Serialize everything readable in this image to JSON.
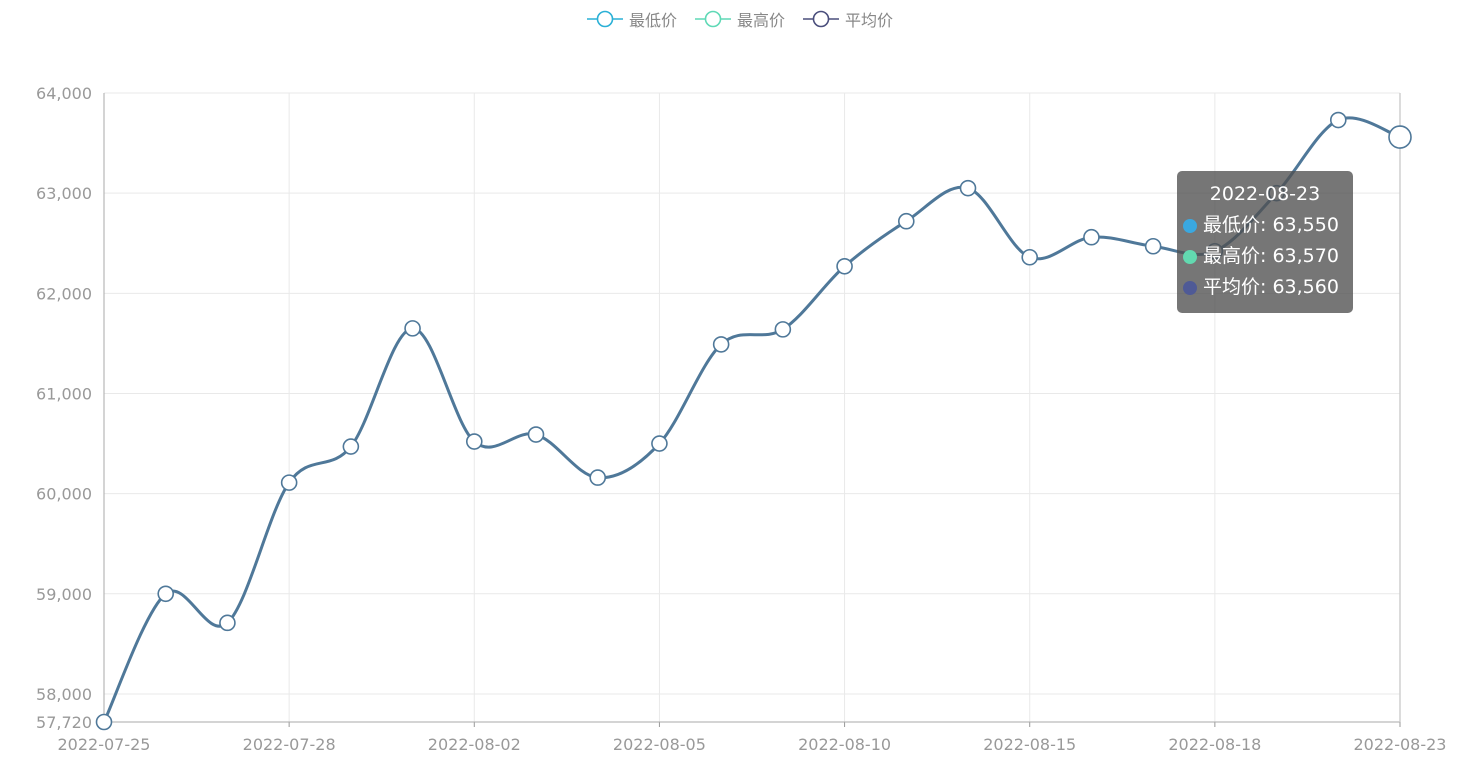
{
  "legend": {
    "items": [
      {
        "label": "最低价",
        "color": "#2ab0d6"
      },
      {
        "label": "最高价",
        "color": "#5fd9b6"
      },
      {
        "label": "平均价",
        "color": "#4a4e7c"
      }
    ]
  },
  "tooltip": {
    "title": "2022-08-23",
    "rows": [
      {
        "label": "最低价: 63,550",
        "color": "#3aa8e0"
      },
      {
        "label": "最高价: 63,570",
        "color": "#62d9b0"
      },
      {
        "label": "平均价: 63,560",
        "color": "#4f5a96"
      }
    ]
  },
  "chart_data": {
    "type": "line",
    "smooth": true,
    "ylim": [
      57720,
      64000
    ],
    "y_ticks": [
      "57,720",
      "58,000",
      "59,000",
      "60,000",
      "61,000",
      "62,000",
      "63,000",
      "64,000"
    ],
    "y_tick_values": [
      57720,
      58000,
      59000,
      60000,
      61000,
      62000,
      63000,
      64000
    ],
    "x_labels": [
      "2022-07-25",
      "2022-07-28",
      "2022-08-02",
      "2022-08-05",
      "2022-08-10",
      "2022-08-15",
      "2022-08-18",
      "2022-08-23"
    ],
    "x_label_indices": [
      0,
      3,
      6,
      9,
      12,
      15,
      18,
      21
    ],
    "line_color": "#4f7899",
    "grid": true,
    "legend_position": "top-center",
    "points": [
      57720,
      59000,
      58710,
      60110,
      60470,
      61650,
      60520,
      60590,
      60160,
      60500,
      61490,
      61640,
      62270,
      62720,
      63050,
      62360,
      62560,
      62470,
      62420,
      63000,
      63730,
      63560
    ]
  }
}
